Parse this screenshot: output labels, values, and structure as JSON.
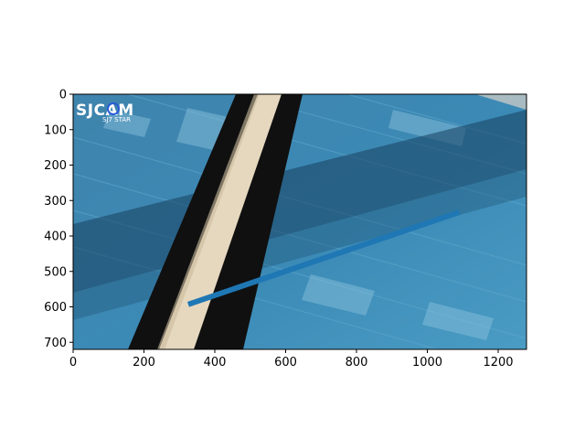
{
  "chart_data": {
    "type": "line",
    "background_image": "blue-wood-floor-photo",
    "image_width": 1280,
    "image_height": 720,
    "xlim": [
      0,
      1280
    ],
    "ylim": [
      720,
      0
    ],
    "y_inverted": true,
    "grid": false,
    "x_ticks": [
      0,
      200,
      400,
      600,
      800,
      1000,
      1200
    ],
    "y_ticks": [
      0,
      100,
      200,
      300,
      400,
      500,
      600,
      700
    ],
    "series": [
      {
        "color": "#1f77b4",
        "x": [
          325,
          1090
        ],
        "y": [
          593,
          333
        ]
      }
    ]
  },
  "watermark": {
    "brand": "SJCAM",
    "model": "SJ7 STAR"
  }
}
